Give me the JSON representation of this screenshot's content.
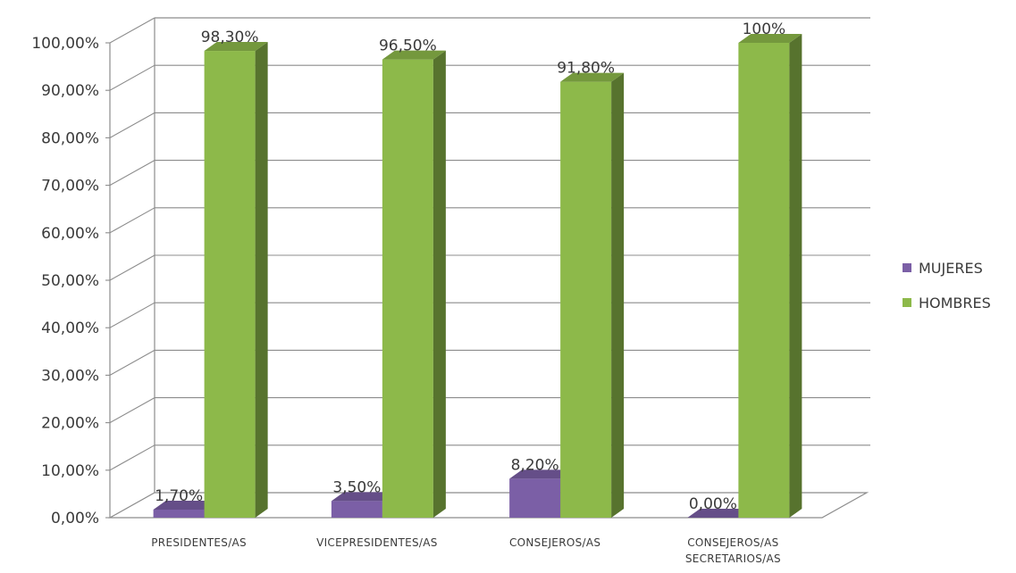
{
  "chart_data": {
    "type": "bar",
    "categories": [
      [
        "PRESIDENTES/AS"
      ],
      [
        "VICEPRESIDENTES/AS"
      ],
      [
        "CONSEJEROS/AS"
      ],
      [
        "CONSEJEROS/AS",
        "SECRETARIOS/AS"
      ]
    ],
    "ylim": [
      0,
      100
    ],
    "y_ticks": [
      "0,00%",
      "10,00%",
      "20,00%",
      "30,00%",
      "40,00%",
      "50,00%",
      "60,00%",
      "70,00%",
      "80,00%",
      "90,00%",
      "100,00%"
    ],
    "grid": true,
    "legend_position": "right",
    "series": [
      {
        "name": "MUJERES",
        "values": [
          1.7,
          3.5,
          8.2,
          0.0
        ],
        "labels": [
          "1,70%",
          "3,50%",
          "8,20%",
          "0,00%"
        ],
        "color": "#7b5fa6"
      },
      {
        "name": "HOMBRES",
        "values": [
          98.3,
          96.5,
          91.8,
          100
        ],
        "labels": [
          "98,30%",
          "96,50%",
          "91,80%",
          "100%"
        ],
        "color": "#8db94a"
      }
    ]
  }
}
